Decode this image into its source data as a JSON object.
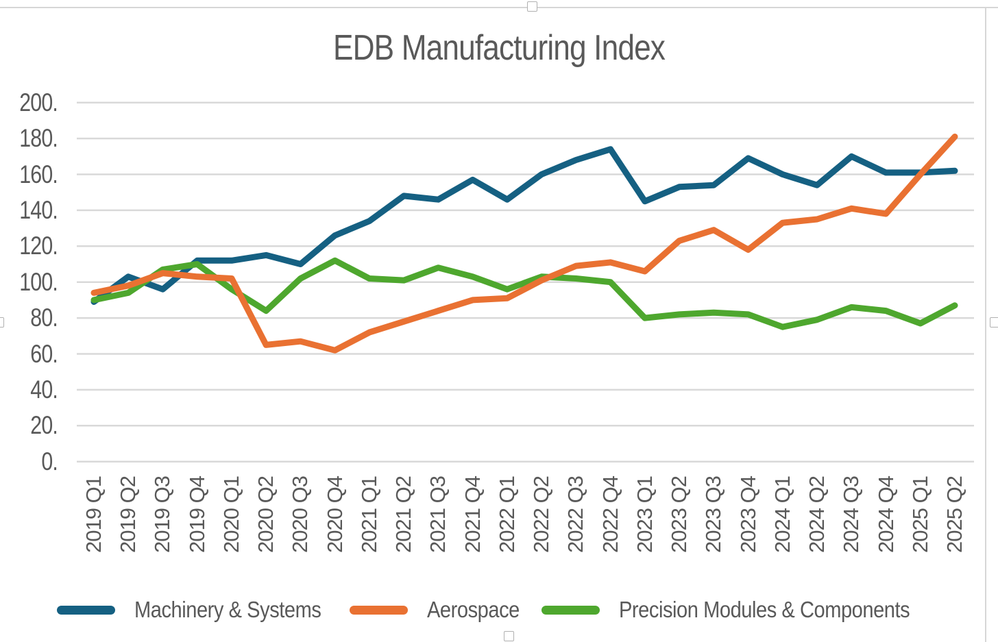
{
  "chart": {
    "title": "EDB Manufacturing Index",
    "colors": {
      "background": "#FFFFFF",
      "frame_border": "#D6D6D6",
      "gridline": "#D9D9D9",
      "text": "#595959"
    }
  },
  "chart_data": {
    "type": "line",
    "title": "EDB Manufacturing Index",
    "categories": [
      "2019 Q1",
      "2019 Q2",
      "2019 Q3",
      "2019 Q4",
      "2020 Q1",
      "2020 Q2",
      "2020 Q3",
      "2020 Q4",
      "2021 Q1",
      "2021 Q2",
      "2021 Q3",
      "2021 Q4",
      "2022 Q1",
      "2022 Q2",
      "2022 Q3",
      "2022 Q4",
      "2023 Q1",
      "2023 Q2",
      "2023 Q3",
      "2023 Q4",
      "2024 Q1",
      "2024 Q2",
      "2024 Q3",
      "2024 Q4",
      "2025 Q1",
      "2025 Q2"
    ],
    "series": [
      {
        "name": "Machinery & Systems",
        "color": "#156082",
        "values": [
          89,
          103,
          96,
          112,
          112,
          115,
          110,
          126,
          134,
          148,
          146,
          157,
          146,
          160,
          168,
          174,
          145,
          153,
          154,
          169,
          160,
          154,
          170,
          161,
          161,
          162
        ]
      },
      {
        "name": "Aerospace",
        "color": "#E97132",
        "values": [
          94,
          98,
          105,
          103,
          102,
          65,
          67,
          62,
          72,
          78,
          84,
          90,
          91,
          101,
          109,
          111,
          106,
          123,
          129,
          118,
          133,
          135,
          141,
          138,
          160,
          181
        ]
      },
      {
        "name": "Precision Modules & Components",
        "color": "#4EA72E",
        "values": [
          90,
          94,
          107,
          110,
          96,
          84,
          102,
          112,
          102,
          101,
          108,
          103,
          96,
          103,
          102,
          100,
          80,
          82,
          83,
          82,
          75,
          79,
          86,
          84,
          77,
          87
        ]
      }
    ],
    "ylim": [
      0,
      200
    ],
    "y_ticks": [
      "0.",
      "20.",
      "40.",
      "60.",
      "80.",
      "100.",
      "120.",
      "140.",
      "160.",
      "180.",
      "200."
    ],
    "grid": true,
    "legend_position": "bottom",
    "x_label_rotation_degrees": 90
  },
  "legend": {
    "items": [
      {
        "label": "Machinery & Systems",
        "color": "#156082"
      },
      {
        "label": "Aerospace",
        "color": "#E97132"
      },
      {
        "label": "Precision Modules & Components",
        "color": "#4EA72E"
      }
    ]
  }
}
